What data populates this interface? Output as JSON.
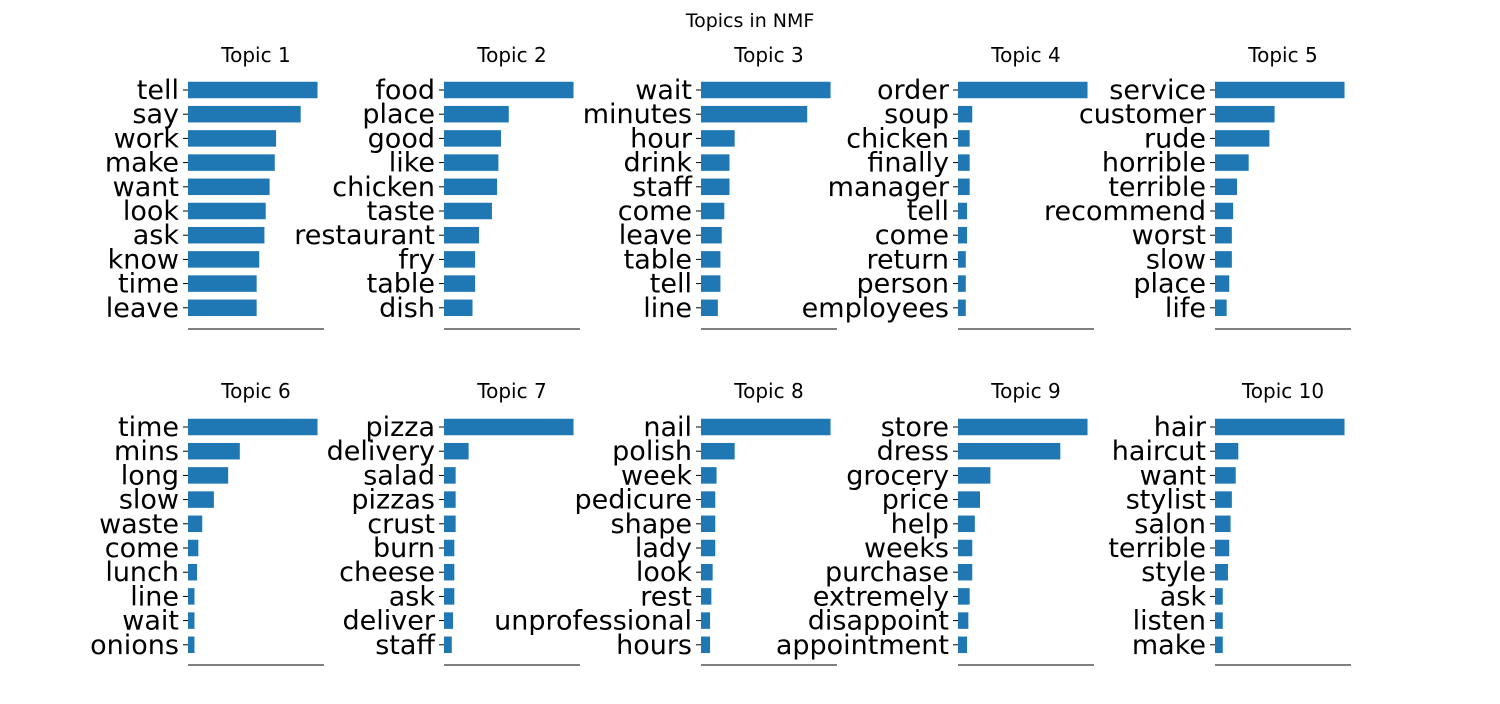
{
  "title": "Topics in NMF",
  "chart_data": [
    {
      "type": "bar",
      "title": "Topic 1",
      "categories": [
        "tell",
        "say",
        "work",
        "make",
        "want",
        "look",
        "ask",
        "know",
        "time",
        "leave"
      ],
      "values": [
        1.0,
        0.87,
        0.68,
        0.67,
        0.63,
        0.6,
        0.59,
        0.55,
        0.53,
        0.53
      ],
      "xlim": [
        0,
        1.05
      ],
      "color": "#1f77b4"
    },
    {
      "type": "bar",
      "title": "Topic 2",
      "categories": [
        "food",
        "place",
        "good",
        "like",
        "chicken",
        "taste",
        "restaurant",
        "fry",
        "table",
        "dish"
      ],
      "values": [
        1.0,
        0.5,
        0.44,
        0.42,
        0.41,
        0.37,
        0.27,
        0.24,
        0.24,
        0.22
      ],
      "xlim": [
        0,
        1.05
      ],
      "color": "#1f77b4"
    },
    {
      "type": "bar",
      "title": "Topic 3",
      "categories": [
        "wait",
        "minutes",
        "hour",
        "drink",
        "staff",
        "come",
        "leave",
        "table",
        "tell",
        "line"
      ],
      "values": [
        1.0,
        0.82,
        0.26,
        0.22,
        0.22,
        0.18,
        0.16,
        0.15,
        0.15,
        0.13
      ],
      "xlim": [
        0,
        1.05
      ],
      "color": "#1f77b4"
    },
    {
      "type": "bar",
      "title": "Topic 4",
      "categories": [
        "order",
        "soup",
        "chicken",
        "finally",
        "manager",
        "tell",
        "come",
        "return",
        "person",
        "employees"
      ],
      "values": [
        1.0,
        0.11,
        0.09,
        0.09,
        0.09,
        0.07,
        0.07,
        0.06,
        0.06,
        0.06
      ],
      "xlim": [
        0,
        1.05
      ],
      "color": "#1f77b4"
    },
    {
      "type": "bar",
      "title": "Topic 5",
      "categories": [
        "service",
        "customer",
        "rude",
        "horrible",
        "terrible",
        "recommend",
        "worst",
        "slow",
        "place",
        "life"
      ],
      "values": [
        1.0,
        0.46,
        0.42,
        0.26,
        0.17,
        0.14,
        0.13,
        0.13,
        0.11,
        0.09
      ],
      "xlim": [
        0,
        1.05
      ],
      "color": "#1f77b4"
    },
    {
      "type": "bar",
      "title": "Topic 6",
      "categories": [
        "time",
        "mins",
        "long",
        "slow",
        "waste",
        "come",
        "lunch",
        "line",
        "wait",
        "onions"
      ],
      "values": [
        1.0,
        0.4,
        0.31,
        0.2,
        0.11,
        0.08,
        0.07,
        0.05,
        0.05,
        0.05
      ],
      "xlim": [
        0,
        1.05
      ],
      "color": "#1f77b4"
    },
    {
      "type": "bar",
      "title": "Topic 7",
      "categories": [
        "pizza",
        "delivery",
        "salad",
        "pizzas",
        "crust",
        "burn",
        "cheese",
        "ask",
        "deliver",
        "staff"
      ],
      "values": [
        1.0,
        0.19,
        0.09,
        0.09,
        0.09,
        0.08,
        0.08,
        0.08,
        0.07,
        0.06
      ],
      "xlim": [
        0,
        1.05
      ],
      "color": "#1f77b4"
    },
    {
      "type": "bar",
      "title": "Topic 8",
      "categories": [
        "nail",
        "polish",
        "week",
        "pedicure",
        "shape",
        "lady",
        "look",
        "rest",
        "unprofessional",
        "hours"
      ],
      "values": [
        1.0,
        0.26,
        0.12,
        0.11,
        0.11,
        0.11,
        0.09,
        0.08,
        0.07,
        0.07
      ],
      "xlim": [
        0,
        1.05
      ],
      "color": "#1f77b4"
    },
    {
      "type": "bar",
      "title": "Topic 9",
      "categories": [
        "store",
        "dress",
        "grocery",
        "price",
        "help",
        "weeks",
        "purchase",
        "extremely",
        "disappoint",
        "appointment"
      ],
      "values": [
        1.0,
        0.79,
        0.25,
        0.17,
        0.13,
        0.11,
        0.11,
        0.09,
        0.08,
        0.07
      ],
      "xlim": [
        0,
        1.05
      ],
      "color": "#1f77b4"
    },
    {
      "type": "bar",
      "title": "Topic 10",
      "categories": [
        "hair",
        "haircut",
        "want",
        "stylist",
        "salon",
        "terrible",
        "style",
        "ask",
        "listen",
        "make"
      ],
      "values": [
        1.0,
        0.18,
        0.16,
        0.13,
        0.12,
        0.11,
        0.1,
        0.06,
        0.06,
        0.06
      ],
      "xlim": [
        0,
        1.05
      ],
      "color": "#1f77b4"
    }
  ]
}
